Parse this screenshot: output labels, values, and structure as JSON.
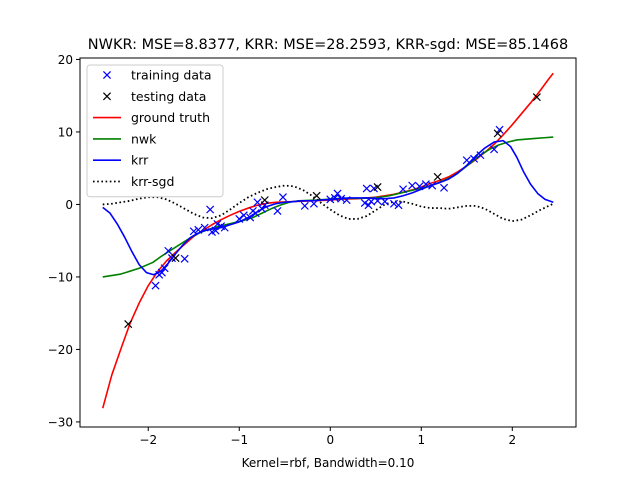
{
  "chart_data": {
    "type": "line",
    "title": "NWKR: MSE=8.8377, KRR: MSE=28.2593, KRR-sgd: MSE=85.1468",
    "xlabel": "Kernel=rbf, Bandwidth=0.10",
    "ylabel": "",
    "xlim": [
      -2.75,
      2.7
    ],
    "ylim": [
      -30.7,
      20.2
    ],
    "xticks": [
      -2,
      -1,
      0,
      1,
      2
    ],
    "yticks": [
      -30,
      -20,
      -10,
      0,
      10,
      20
    ],
    "grid": false,
    "legend_position": "top-left",
    "series": [
      {
        "name": "training data",
        "kind": "marker",
        "marker": "x",
        "color": "#0000ff",
        "points": [
          [
            -1.92,
            -11.2
          ],
          [
            -1.88,
            -9.7
          ],
          [
            -1.85,
            -9.4
          ],
          [
            -1.82,
            -8.8
          ],
          [
            -1.78,
            -6.4
          ],
          [
            -1.74,
            -7.4
          ],
          [
            -1.6,
            -7.5
          ],
          [
            -1.5,
            -3.7
          ],
          [
            -1.45,
            -3.5
          ],
          [
            -1.38,
            -3.2
          ],
          [
            -1.32,
            -0.7
          ],
          [
            -1.3,
            -3.8
          ],
          [
            -1.26,
            -3.6
          ],
          [
            -1.24,
            -2.7
          ],
          [
            -1.2,
            -3.0
          ],
          [
            -1.16,
            -3.2
          ],
          [
            -1.0,
            -2.0
          ],
          [
            -0.95,
            -1.5
          ],
          [
            -0.88,
            -1.8
          ],
          [
            -0.85,
            -0.9
          ],
          [
            -0.82,
            -1.2
          ],
          [
            -0.8,
            0.3
          ],
          [
            -0.75,
            -0.6
          ],
          [
            -0.72,
            -0.1
          ],
          [
            -0.58,
            -0.9
          ],
          [
            -0.52,
            1.0
          ],
          [
            -0.28,
            -0.2
          ],
          [
            -0.18,
            0.1
          ],
          [
            0.0,
            0.7
          ],
          [
            0.05,
            0.9
          ],
          [
            0.08,
            1.5
          ],
          [
            0.12,
            0.8
          ],
          [
            0.18,
            0.6
          ],
          [
            0.38,
            0.2
          ],
          [
            0.4,
            2.2
          ],
          [
            0.42,
            -0.1
          ],
          [
            0.45,
            0.4
          ],
          [
            0.48,
            2.2
          ],
          [
            0.52,
            0.5
          ],
          [
            0.6,
            0.4
          ],
          [
            0.7,
            0.1
          ],
          [
            0.75,
            -0.1
          ],
          [
            0.8,
            2.1
          ],
          [
            0.9,
            2.6
          ],
          [
            0.98,
            2.5
          ],
          [
            1.05,
            2.8
          ],
          [
            1.12,
            2.6
          ],
          [
            1.25,
            2.3
          ],
          [
            1.5,
            6.1
          ],
          [
            1.58,
            6.3
          ],
          [
            1.65,
            6.8
          ],
          [
            1.8,
            7.6
          ],
          [
            1.86,
            10.3
          ]
        ]
      },
      {
        "name": "testing data",
        "kind": "marker",
        "marker": "x",
        "color": "#000000",
        "points": [
          [
            -2.22,
            -16.5
          ],
          [
            -1.7,
            -7.4
          ],
          [
            -0.72,
            0.6
          ],
          [
            -0.15,
            1.2
          ],
          [
            0.52,
            2.4
          ],
          [
            1.18,
            3.8
          ],
          [
            1.84,
            9.8
          ],
          [
            2.27,
            14.8
          ]
        ]
      },
      {
        "name": "ground truth",
        "kind": "line",
        "color": "#ff0000",
        "style": "solid",
        "x": [
          -2.5,
          -2.4,
          -2.3,
          -2.2,
          -2.1,
          -2.0,
          -1.9,
          -1.8,
          -1.7,
          -1.6,
          -1.5,
          -1.4,
          -1.3,
          -1.2,
          -1.1,
          -1.0,
          -0.9,
          -0.8,
          -0.7,
          -0.6,
          -0.5,
          -0.4,
          -0.3,
          -0.2,
          -0.1,
          0.0,
          0.1,
          0.2,
          0.3,
          0.4,
          0.5,
          0.6,
          0.7,
          0.8,
          0.9,
          1.0,
          1.1,
          1.2,
          1.3,
          1.4,
          1.5,
          1.6,
          1.7,
          1.8,
          1.9,
          2.0,
          2.1,
          2.2,
          2.3,
          2.4,
          2.45
        ],
        "y": [
          -28.1,
          -23.5,
          -19.9,
          -16.4,
          -13.6,
          -11.2,
          -9.3,
          -7.8,
          -6.6,
          -5.5,
          -4.4,
          -3.6,
          -2.8,
          -2.1,
          -1.5,
          -0.95,
          -0.5,
          -0.1,
          0.15,
          0.3,
          0.35,
          0.4,
          0.45,
          0.5,
          0.55,
          0.6,
          0.7,
          0.75,
          0.8,
          0.9,
          1.0,
          1.2,
          1.4,
          1.7,
          2.0,
          2.4,
          2.9,
          3.3,
          3.8,
          4.5,
          5.3,
          6.2,
          7.2,
          8.3,
          9.6,
          11.0,
          12.5,
          14.0,
          15.6,
          17.3,
          18.1
        ]
      },
      {
        "name": "nwk",
        "kind": "line",
        "color": "#008000",
        "style": "solid",
        "x": [
          -2.5,
          -2.3,
          -2.1,
          -1.95,
          -1.85,
          -1.75,
          -1.65,
          -1.55,
          -1.45,
          -1.35,
          -1.25,
          -1.15,
          -1.05,
          -0.95,
          -0.85,
          -0.75,
          -0.65,
          -0.55,
          -0.45,
          -0.35,
          -0.25,
          -0.15,
          -0.05,
          0.05,
          0.15,
          0.25,
          0.35,
          0.45,
          0.55,
          0.65,
          0.75,
          0.85,
          0.95,
          1.05,
          1.15,
          1.25,
          1.35,
          1.45,
          1.55,
          1.65,
          1.75,
          1.85,
          1.95,
          2.05,
          2.15,
          2.25,
          2.35,
          2.45
        ],
        "y": [
          -10.0,
          -9.6,
          -8.8,
          -8.0,
          -7.1,
          -6.3,
          -5.5,
          -4.7,
          -4.0,
          -3.5,
          -3.1,
          -2.8,
          -2.5,
          -2.2,
          -1.8,
          -1.2,
          -0.6,
          -0.1,
          0.3,
          0.5,
          0.55,
          0.6,
          0.7,
          0.8,
          0.85,
          0.85,
          0.85,
          0.9,
          1.0,
          1.2,
          1.5,
          1.8,
          2.1,
          2.4,
          2.8,
          3.3,
          3.9,
          4.8,
          5.8,
          6.8,
          7.6,
          8.2,
          8.6,
          8.9,
          9.0,
          9.1,
          9.2,
          9.3
        ]
      },
      {
        "name": "krr",
        "kind": "line",
        "color": "#0000ff",
        "style": "solid",
        "x": [
          -2.5,
          -2.42,
          -2.34,
          -2.26,
          -2.18,
          -2.1,
          -2.02,
          -1.94,
          -1.86,
          -1.78,
          -1.7,
          -1.62,
          -1.54,
          -1.46,
          -1.38,
          -1.3,
          -1.2,
          -1.1,
          -1.0,
          -0.9,
          -0.8,
          -0.7,
          -0.6,
          -0.5,
          -0.4,
          -0.3,
          -0.2,
          -0.1,
          0.0,
          0.1,
          0.2,
          0.3,
          0.4,
          0.5,
          0.6,
          0.7,
          0.8,
          0.9,
          1.0,
          1.1,
          1.2,
          1.3,
          1.4,
          1.5,
          1.6,
          1.7,
          1.8,
          1.9,
          1.98,
          2.05,
          2.12,
          2.2,
          2.28,
          2.36,
          2.45
        ],
        "y": [
          -0.4,
          -1.2,
          -2.7,
          -4.5,
          -6.5,
          -8.3,
          -9.4,
          -9.7,
          -9.2,
          -8.1,
          -6.8,
          -5.6,
          -4.6,
          -4.0,
          -3.6,
          -3.4,
          -3.2,
          -2.8,
          -2.4,
          -1.8,
          -1.0,
          -0.3,
          0.1,
          0.3,
          0.4,
          0.5,
          0.5,
          0.6,
          0.7,
          0.8,
          0.9,
          0.9,
          0.9,
          0.8,
          0.8,
          0.9,
          1.2,
          1.6,
          2.1,
          2.6,
          3.0,
          3.5,
          4.3,
          5.4,
          6.7,
          7.8,
          8.6,
          8.8,
          8.0,
          6.5,
          4.6,
          2.8,
          1.5,
          0.7,
          0.3
        ]
      },
      {
        "name": "krr-sgd",
        "kind": "line",
        "color": "#000000",
        "style": "dotted",
        "x": [
          -2.5,
          -2.4,
          -2.3,
          -2.2,
          -2.1,
          -2.0,
          -1.9,
          -1.8,
          -1.7,
          -1.6,
          -1.5,
          -1.4,
          -1.3,
          -1.2,
          -1.1,
          -1.0,
          -0.9,
          -0.8,
          -0.7,
          -0.6,
          -0.5,
          -0.4,
          -0.3,
          -0.2,
          -0.1,
          0.0,
          0.1,
          0.2,
          0.3,
          0.4,
          0.5,
          0.6,
          0.7,
          0.8,
          0.9,
          1.0,
          1.1,
          1.2,
          1.3,
          1.4,
          1.5,
          1.6,
          1.7,
          1.8,
          1.9,
          2.0,
          2.1,
          2.2,
          2.3,
          2.4,
          2.45
        ],
        "y": [
          0.0,
          0.1,
          0.3,
          0.5,
          0.8,
          1.0,
          1.0,
          0.7,
          0.1,
          -0.6,
          -1.3,
          -1.8,
          -1.9,
          -1.5,
          -0.7,
          0.2,
          1.0,
          1.6,
          2.1,
          2.4,
          2.6,
          2.5,
          2.0,
          1.2,
          0.2,
          -0.7,
          -1.5,
          -2.0,
          -2.0,
          -1.6,
          -0.8,
          0.0,
          0.4,
          0.4,
          0.1,
          -0.3,
          -0.5,
          -0.5,
          -0.6,
          -0.4,
          -0.2,
          -0.2,
          -0.6,
          -1.3,
          -2.0,
          -2.3,
          -2.1,
          -1.5,
          -0.8,
          -0.2,
          0.1
        ]
      }
    ]
  }
}
